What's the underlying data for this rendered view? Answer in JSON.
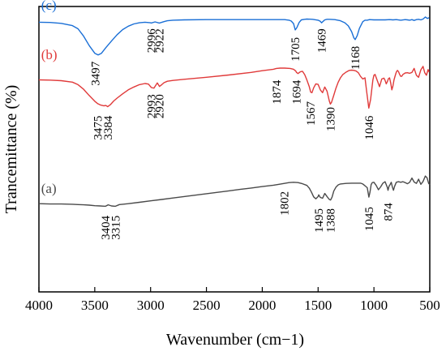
{
  "chart_data": {
    "type": "line",
    "title": "",
    "xlabel": "Wavenumber (cm−1)",
    "ylabel": "Trancemittance (%)",
    "xlim": [
      4000,
      500
    ],
    "x_reversed": true,
    "yticks_shown": false,
    "grid": false,
    "legend": "none",
    "xticks": [
      4000,
      3500,
      3000,
      2500,
      2000,
      1500,
      1000,
      500
    ],
    "series": [
      {
        "name": "(c)",
        "color": "#1a6fd6",
        "x": [
          4000,
          3900,
          3800,
          3700,
          3650,
          3600,
          3550,
          3500,
          3470,
          3440,
          3400,
          3350,
          3300,
          3250,
          3200,
          3150,
          3100,
          3050,
          3000,
          2996,
          2960,
          2922,
          2880,
          2850,
          2800,
          2700,
          2500,
          2300,
          2100,
          2000,
          1900,
          1800,
          1760,
          1740,
          1720,
          1705,
          1690,
          1670,
          1650,
          1620,
          1600,
          1550,
          1500,
          1480,
          1469,
          1455,
          1440,
          1420,
          1400,
          1350,
          1300,
          1260,
          1230,
          1200,
          1180,
          1168,
          1150,
          1130,
          1100,
          1080,
          1060,
          1040,
          1000,
          950,
          900,
          860,
          830,
          800,
          760,
          720,
          700,
          680,
          660,
          640,
          620,
          600,
          580,
          560,
          540,
          520,
          505
        ],
        "y": [
          94.5,
          94.4,
          94.1,
          93.3,
          92.2,
          89.6,
          86.3,
          83.6,
          83.0,
          83.6,
          85.6,
          87.9,
          90.1,
          91.9,
          93.1,
          93.9,
          94.3,
          94.5,
          94.3,
          94.2,
          94.6,
          94.2,
          94.7,
          95.0,
          95.2,
          95.3,
          95.4,
          95.4,
          95.4,
          95.4,
          95.4,
          95.4,
          95.2,
          94.9,
          94.0,
          91.8,
          92.6,
          94.4,
          95.3,
          95.5,
          95.6,
          95.5,
          95.2,
          94.8,
          94.3,
          94.8,
          95.3,
          95.5,
          95.5,
          95.4,
          95.0,
          94.3,
          93.2,
          91.2,
          89.0,
          88.4,
          89.8,
          92.3,
          94.7,
          95.2,
          95.2,
          95.4,
          95.3,
          95.3,
          95.3,
          95.4,
          95.3,
          95.4,
          95.2,
          95.4,
          95.3,
          95.2,
          95.4,
          95.1,
          95.4,
          95.5,
          95.3,
          95.6,
          96.3,
          95.8,
          96.1
        ]
      },
      {
        "name": "(b)",
        "color": "#e03a3a",
        "x": [
          4000,
          3900,
          3800,
          3700,
          3650,
          3600,
          3550,
          3500,
          3475,
          3450,
          3420,
          3400,
          3384,
          3360,
          3330,
          3300,
          3250,
          3200,
          3150,
          3100,
          3050,
          3020,
          2993,
          2970,
          2950,
          2940,
          2920,
          2900,
          2880,
          2850,
          2800,
          2700,
          2500,
          2300,
          2100,
          2000,
          1900,
          1874,
          1840,
          1800,
          1750,
          1720,
          1700,
          1694,
          1680,
          1660,
          1640,
          1620,
          1600,
          1580,
          1567,
          1555,
          1540,
          1520,
          1500,
          1480,
          1460,
          1440,
          1420,
          1400,
          1390,
          1380,
          1360,
          1340,
          1320,
          1300,
          1280,
          1250,
          1220,
          1200,
          1180,
          1160,
          1140,
          1120,
          1100,
          1080,
          1065,
          1046,
          1030,
          1020,
          1010,
          1000,
          990,
          970,
          950,
          930,
          910,
          900,
          890,
          880,
          870,
          860,
          850,
          840,
          830,
          820,
          810,
          800,
          790,
          780,
          770,
          760,
          750,
          740,
          720,
          700,
          680,
          660,
          640,
          620,
          600,
          580,
          560,
          545,
          530,
          515,
          505
        ],
        "y": [
          74.3,
          74.2,
          74.0,
          73.5,
          72.6,
          71.0,
          68.8,
          66.8,
          66.0,
          65.5,
          65.2,
          65.3,
          64.9,
          65.6,
          66.9,
          67.9,
          69.4,
          70.8,
          71.8,
          72.6,
          73.0,
          72.8,
          71.6,
          71.4,
          72.6,
          73.2,
          72.0,
          72.6,
          73.3,
          73.8,
          74.1,
          74.5,
          75.2,
          76.0,
          76.9,
          77.5,
          78.0,
          78.3,
          78.4,
          78.4,
          78.3,
          78.0,
          77.4,
          76.9,
          76.5,
          77.1,
          77.3,
          76.1,
          74.2,
          72.0,
          70.0,
          69.8,
          71.5,
          72.9,
          72.7,
          70.8,
          69.8,
          71.8,
          70.3,
          66.9,
          65.8,
          66.4,
          68.9,
          71.4,
          73.5,
          75.0,
          76.1,
          77.0,
          77.6,
          77.7,
          77.6,
          77.4,
          76.8,
          75.5,
          74.6,
          75.0,
          70.1,
          64.4,
          67.4,
          70.8,
          74.2,
          75.9,
          76.2,
          74.0,
          71.9,
          74.6,
          74.9,
          74.1,
          72.9,
          73.7,
          74.7,
          75.0,
          73.2,
          70.8,
          72.2,
          74.3,
          75.7,
          77.0,
          77.6,
          77.2,
          76.2,
          75.5,
          75.6,
          76.2,
          76.7,
          76.8,
          76.6,
          76.9,
          78.3,
          75.9,
          75.2,
          77.8,
          79.0,
          76.8,
          75.9,
          77.9,
          77.0
        ]
      },
      {
        "name": "(a)",
        "color": "#4a4a4a",
        "x": [
          4000,
          3900,
          3800,
          3700,
          3650,
          3600,
          3550,
          3500,
          3450,
          3404,
          3380,
          3350,
          3315,
          3280,
          3250,
          3200,
          3100,
          3000,
          2900,
          2800,
          2700,
          2600,
          2500,
          2400,
          2300,
          2200,
          2100,
          2000,
          1900,
          1850,
          1802,
          1760,
          1720,
          1680,
          1640,
          1600,
          1580,
          1560,
          1540,
          1520,
          1500,
          1495,
          1480,
          1460,
          1440,
          1420,
          1400,
          1388,
          1375,
          1360,
          1340,
          1320,
          1300,
          1250,
          1200,
          1150,
          1120,
          1100,
          1080,
          1060,
          1045,
          1035,
          1025,
          1015,
          1000,
          980,
          960,
          940,
          920,
          900,
          880,
          874,
          865,
          855,
          845,
          835,
          825,
          815,
          800,
          780,
          760,
          740,
          720,
          700,
          680,
          660,
          640,
          620,
          600,
          580,
          560,
          540,
          525,
          510,
          500
        ],
        "y": [
          30.9,
          30.8,
          30.8,
          30.7,
          30.6,
          30.5,
          30.4,
          30.2,
          30.1,
          30.0,
          30.5,
          30.1,
          30.0,
          30.6,
          30.7,
          30.9,
          31.4,
          31.9,
          32.4,
          32.9,
          33.4,
          33.9,
          34.4,
          34.9,
          35.4,
          35.9,
          36.4,
          36.9,
          37.4,
          37.7,
          38.0,
          38.3,
          38.4,
          38.3,
          37.9,
          37.3,
          36.4,
          35.0,
          33.3,
          32.6,
          33.4,
          34.0,
          33.1,
          32.8,
          34.5,
          33.4,
          32.4,
          32.2,
          33.2,
          35.3,
          36.7,
          37.5,
          37.8,
          38.0,
          38.1,
          38.1,
          38.1,
          37.8,
          37.2,
          36.5,
          33.2,
          35.0,
          37.6,
          38.3,
          38.4,
          37.3,
          35.8,
          36.8,
          38.1,
          38.6,
          36.6,
          35.6,
          37.0,
          37.6,
          38.4,
          36.7,
          35.6,
          37.0,
          38.4,
          38.6,
          38.4,
          38.6,
          38.3,
          37.9,
          38.4,
          39.9,
          38.5,
          38.0,
          39.5,
          37.7,
          38.7,
          40.6,
          40.0,
          38.0,
          37.6
        ]
      }
    ],
    "series_labels": [
      {
        "text": "(c)",
        "x": 3980,
        "y": 98.8
      },
      {
        "text": "(b)",
        "x": 3980,
        "y": 81.6
      },
      {
        "text": "(a)",
        "x": 3980,
        "y": 34.6
      }
    ],
    "peak_labels": [
      {
        "text": "3497",
        "x": 3497,
        "y": 76.5
      },
      {
        "text": "2996",
        "x": 2996,
        "y": 88.0
      },
      {
        "text": "2922",
        "x": 2922,
        "y": 88.0
      },
      {
        "text": "1705",
        "x": 1705,
        "y": 85.0
      },
      {
        "text": "1469",
        "x": 1469,
        "y": 88.0
      },
      {
        "text": "1168",
        "x": 1168,
        "y": 82.0
      },
      {
        "text": "3475",
        "x": 3475,
        "y": 57.5
      },
      {
        "text": "3384",
        "x": 3384,
        "y": 57.5
      },
      {
        "text": "2993",
        "x": 2993,
        "y": 65.0
      },
      {
        "text": "2920",
        "x": 2920,
        "y": 65.0
      },
      {
        "text": "1874",
        "x": 1874,
        "y": 70.0
      },
      {
        "text": "1694",
        "x": 1694,
        "y": 70.0
      },
      {
        "text": "1567",
        "x": 1567,
        "y": 62.5
      },
      {
        "text": "1390",
        "x": 1390,
        "y": 60.5
      },
      {
        "text": "1046",
        "x": 1046,
        "y": 57.5
      },
      {
        "text": "3404",
        "x": 3404,
        "y": 22.5
      },
      {
        "text": "3315",
        "x": 3315,
        "y": 22.5
      },
      {
        "text": "1802",
        "x": 1802,
        "y": 31.0
      },
      {
        "text": "1495",
        "x": 1495,
        "y": 25.0
      },
      {
        "text": "1388",
        "x": 1388,
        "y": 25.0
      },
      {
        "text": "1045",
        "x": 1045,
        "y": 25.5
      },
      {
        "text": "874",
        "x": 874,
        "y": 28.0
      }
    ]
  }
}
